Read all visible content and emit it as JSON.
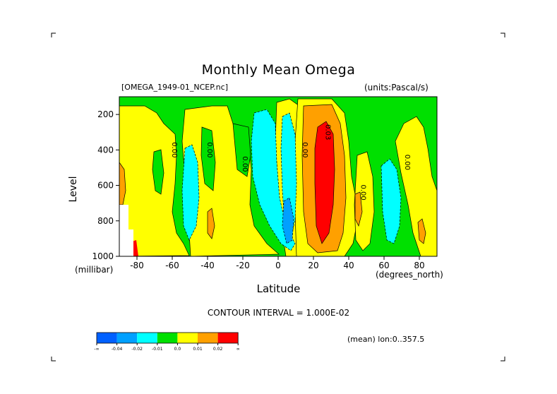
{
  "chart_data": {
    "type": "heatmap",
    "title": "Monthly Mean Omega",
    "dataset": "[OMEGA_1949-01_NCEP.nc]",
    "units": "(units:Pascal/s)",
    "xlabel": "Latitude",
    "x_unit": "(degrees_north)",
    "ylabel": "Level",
    "y_unit": "(millibar)",
    "x_ticks": [
      "-80",
      "-60",
      "-40",
      "-20",
      "0",
      "20",
      "40",
      "60",
      "80"
    ],
    "y_ticks": [
      "200",
      "400",
      "600",
      "800",
      "1000"
    ],
    "xlim": [
      -90,
      90
    ],
    "ylim": [
      1000,
      100
    ],
    "contour_interval": "CONTOUR INTERVAL = 1.000E-02",
    "mean_note": "(mean) lon:0..357.5",
    "contour_labels": [
      "0.00",
      "0.00",
      "0.00",
      "0.00",
      "0.03",
      "0.00",
      "0.00",
      "0.00"
    ],
    "colorbar": {
      "labels": [
        "-∞",
        "-0.04",
        "-0.02",
        "-0.01",
        "0.0",
        "0.01",
        "0.02",
        "∞"
      ],
      "colors": [
        "#0060ff",
        "#00a0ff",
        "#00ffff",
        "#00e000",
        "#ffff00",
        "#ffa000",
        "#ff0000"
      ]
    }
  }
}
